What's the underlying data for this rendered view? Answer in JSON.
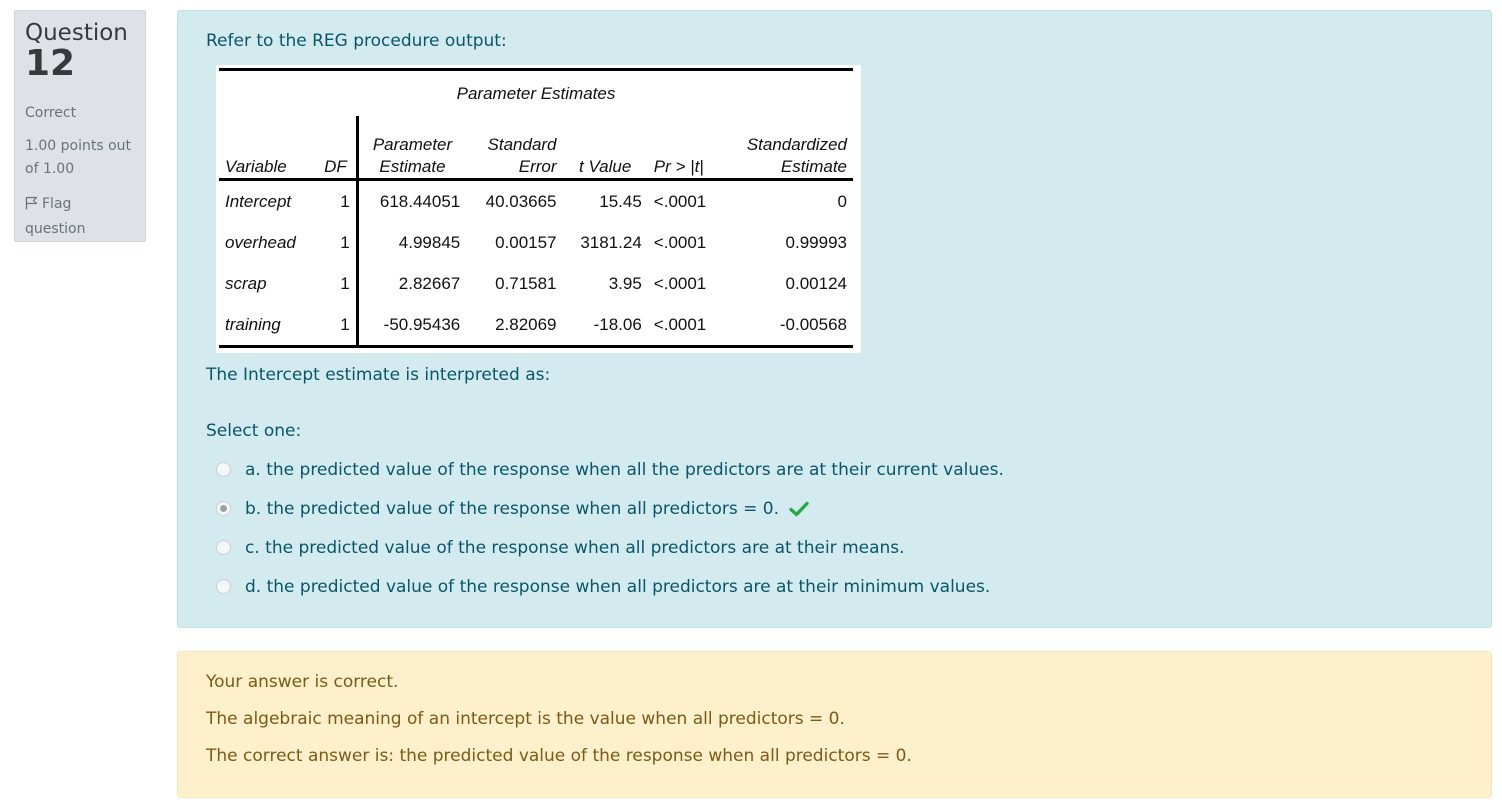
{
  "info": {
    "question_word": "Question",
    "question_number": "12",
    "state": "Correct",
    "grade": "1.00 points out of 1.00",
    "flag_label": "Flag question"
  },
  "question": {
    "intro": "Refer to the REG procedure output:",
    "table": {
      "caption": "Parameter Estimates",
      "headers": {
        "variable": "Variable",
        "df": "DF",
        "param_l1": "Parameter",
        "param_l2": "Estimate",
        "se_l1": "Standard",
        "se_l2": "Error",
        "t": "t Value",
        "p": "Pr > |t|",
        "std_l1": "Standardized",
        "std_l2": "Estimate"
      },
      "rows": [
        {
          "variable": "Intercept",
          "df": "1",
          "estimate": "618.44051",
          "se": "40.03665",
          "t": "15.45",
          "p": "<.0001",
          "std": "0"
        },
        {
          "variable": "overhead",
          "df": "1",
          "estimate": "4.99845",
          "se": "0.00157",
          "t": "3181.24",
          "p": "<.0001",
          "std": "0.99993"
        },
        {
          "variable": "scrap",
          "df": "1",
          "estimate": "2.82667",
          "se": "0.71581",
          "t": "3.95",
          "p": "<.0001",
          "std": "0.00124"
        },
        {
          "variable": "training",
          "df": "1",
          "estimate": "-50.95436",
          "se": "2.82069",
          "t": "-18.06",
          "p": "<.0001",
          "std": "-0.00568"
        }
      ]
    },
    "prompt": "The Intercept estimate is interpreted as:",
    "select_label": "Select one:",
    "options": [
      {
        "label": "a. the predicted value of the response when all the predictors are at their current values.",
        "selected": false
      },
      {
        "label": "b. the predicted value of the response when all predictors  = 0.",
        "selected": true
      },
      {
        "label": "c. the predicted value of the response when all predictors are at their means.",
        "selected": false
      },
      {
        "label": "d. the predicted value of the response when all predictors are at their minimum values.",
        "selected": false
      }
    ]
  },
  "feedback": {
    "result": "Your answer is correct.",
    "explanation": "The algebraic meaning of an intercept is the value when all predictors = 0.",
    "correct_answer": "The correct answer is: the predicted value of the response when all predictors  = 0."
  },
  "colors": {
    "formulation_bg": "#d3eaef",
    "feedback_bg": "#fdf0cb",
    "correct_tick": "#28a745"
  },
  "icons": {
    "flag": "flag-icon",
    "correct": "check-icon"
  }
}
